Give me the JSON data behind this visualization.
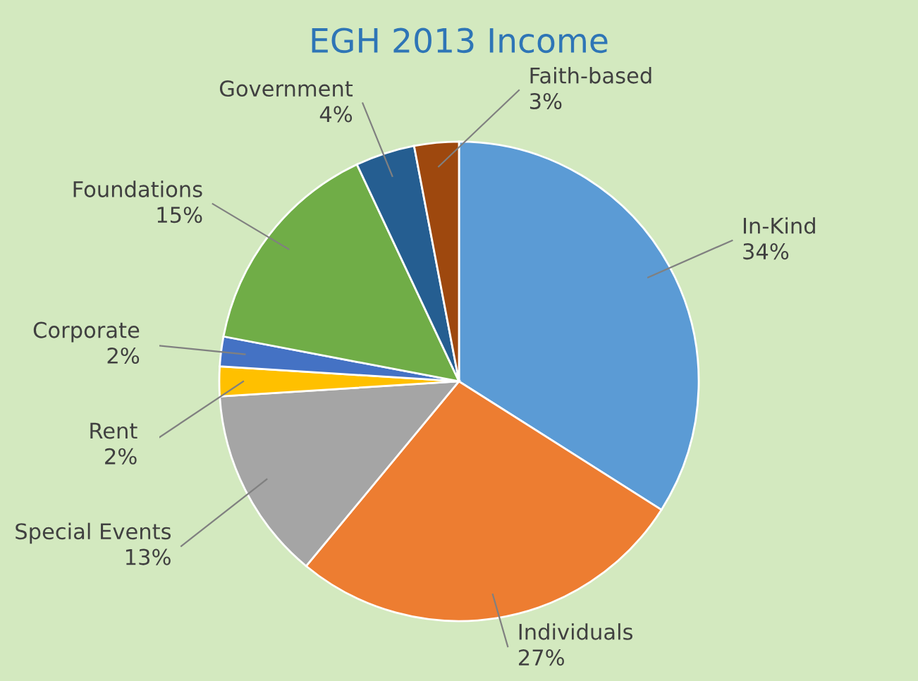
{
  "chart_data": {
    "type": "pie",
    "title": "EGH 2013 Income",
    "categories": [
      "In-Kind",
      "Individuals",
      "Special Events",
      "Rent",
      "Corporate",
      "Foundations",
      "Government",
      "Faith-based"
    ],
    "values": [
      34,
      27,
      13,
      2,
      2,
      15,
      4,
      3
    ],
    "value_labels": [
      "34%",
      "27%",
      "13%",
      "2%",
      "2%",
      "15%",
      "4%",
      "3%"
    ],
    "colors": [
      "#5b9bd5",
      "#ed7d31",
      "#a5a5a5",
      "#ffc000",
      "#4472c4",
      "#70ad47",
      "#255e91",
      "#9e480e"
    ],
    "legend": false
  }
}
